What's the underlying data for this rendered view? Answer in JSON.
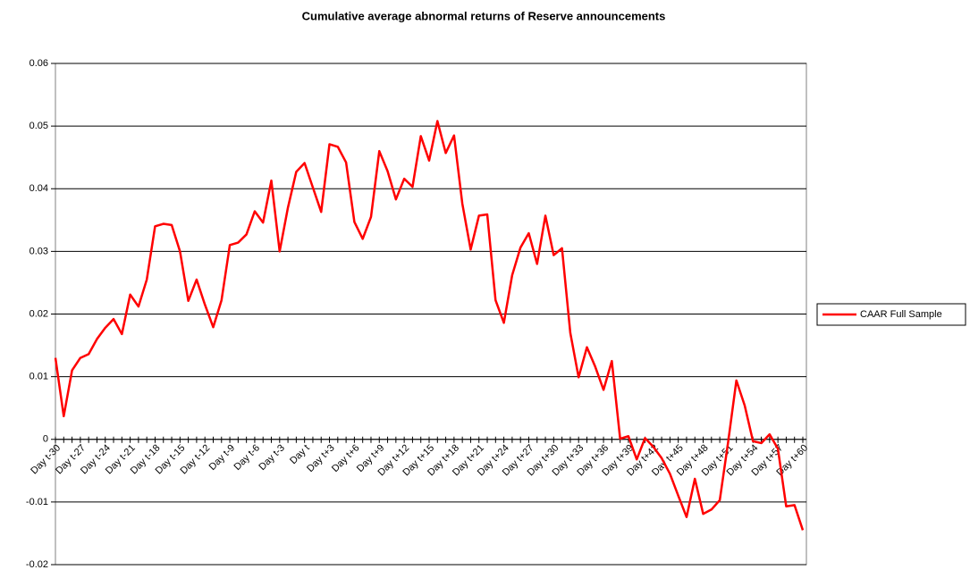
{
  "chart_data": {
    "type": "line",
    "title": "Cumulative average abnormal returns of Reserve announcements",
    "categories": [
      "Day t-30",
      null,
      null,
      "Day t-27",
      null,
      null,
      "Day t-24",
      null,
      null,
      "Day t-21",
      null,
      null,
      "Day t-18",
      null,
      null,
      "Day t-15",
      null,
      null,
      "Day t-12",
      null,
      null,
      "Day t-9",
      null,
      null,
      "Day t-6",
      null,
      null,
      "Day t-3",
      null,
      null,
      "Day t",
      null,
      null,
      "Day t+3",
      null,
      null,
      "Day t+6",
      null,
      null,
      "Day t+9",
      null,
      null,
      "Day t+12",
      null,
      null,
      "Day t+15",
      null,
      null,
      "Day t+18",
      null,
      null,
      "Day t+21",
      null,
      null,
      "Day t+24",
      null,
      null,
      "Day t+27",
      null,
      null,
      "Day t+30",
      null,
      null,
      "Day t+33",
      null,
      null,
      "Day t+36",
      null,
      null,
      "Day t+39",
      null,
      null,
      "Day t+42",
      null,
      null,
      "Day t+45",
      null,
      null,
      "Day t+48",
      null,
      null,
      "Day t+51",
      null,
      null,
      "Day t+54",
      null,
      null,
      "Day t+57",
      null,
      null,
      "Day t+60"
    ],
    "series": [
      {
        "name": "CAAR Full Sample",
        "color": "#ff0000",
        "values": [
          0.013,
          0.0037,
          0.011,
          0.013,
          0.0136,
          0.016,
          0.0178,
          0.0192,
          0.0168,
          0.0231,
          0.0212,
          0.0255,
          0.034,
          0.0344,
          0.0342,
          0.03,
          0.0221,
          0.0255,
          0.0215,
          0.0179,
          0.0222,
          0.031,
          0.0314,
          0.0327,
          0.0364,
          0.0346,
          0.0413,
          0.03,
          0.037,
          0.0427,
          0.0441,
          0.0402,
          0.0363,
          0.0471,
          0.0467,
          0.0442,
          0.0347,
          0.032,
          0.0355,
          0.046,
          0.0428,
          0.0383,
          0.0416,
          0.0403,
          0.0484,
          0.0445,
          0.0508,
          0.0457,
          0.0485,
          0.0376,
          0.0303,
          0.0357,
          0.0359,
          0.0222,
          0.0186,
          0.0262,
          0.0306,
          0.0329,
          0.028,
          0.0357,
          0.0294,
          0.0305,
          0.017,
          0.0099,
          0.0147,
          0.0116,
          0.0079,
          0.0125,
          0.0001,
          0.0005,
          -0.0032,
          0.0002,
          -0.0012,
          -0.003,
          -0.0055,
          -0.009,
          -0.0124,
          -0.0063,
          -0.0119,
          -0.0112,
          -0.0097,
          -0.0005,
          0.0094,
          0.0054,
          -0.0003,
          -0.0006,
          0.0008,
          -0.0015,
          -0.0107,
          -0.0105,
          -0.0145
        ]
      }
    ],
    "ylim": [
      -0.02,
      0.06
    ],
    "yticks": [
      -0.02,
      -0.01,
      0,
      0.01,
      0.02,
      0.03,
      0.04,
      0.05,
      0.06
    ],
    "grid": true,
    "legend": "right"
  }
}
